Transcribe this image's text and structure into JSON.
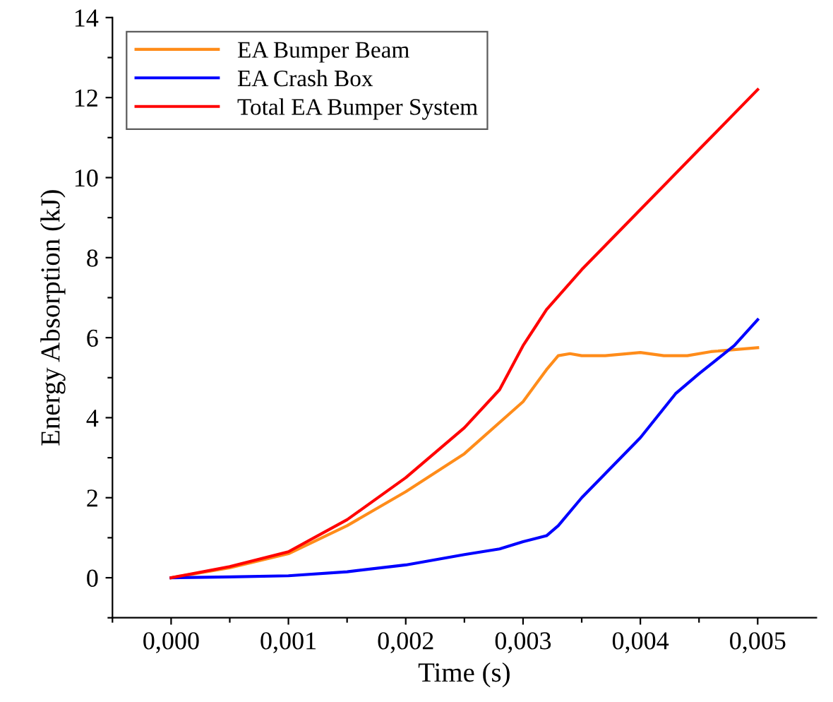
{
  "chart_data": {
    "type": "line",
    "xlabel": "Time (s)",
    "ylabel": "Energy Absorption (kJ)",
    "xlim": [
      -0.0005,
      0.0055
    ],
    "ylim": [
      -1,
      14
    ],
    "xticks": [
      {
        "value": -0.0005,
        "label": null
      },
      {
        "value": 0,
        "label": "0,000"
      },
      {
        "value": 0.0005,
        "label": null
      },
      {
        "value": 0.001,
        "label": "0,001"
      },
      {
        "value": 0.0015,
        "label": null
      },
      {
        "value": 0.002,
        "label": "0,002"
      },
      {
        "value": 0.0025,
        "label": null
      },
      {
        "value": 0.003,
        "label": "0,003"
      },
      {
        "value": 0.0035,
        "label": null
      },
      {
        "value": 0.004,
        "label": "0,004"
      },
      {
        "value": 0.0045,
        "label": null
      },
      {
        "value": 0.005,
        "label": "0,005"
      }
    ],
    "yticks": [
      {
        "value": -1,
        "label": null
      },
      0,
      {
        "value": 1,
        "label": null
      },
      2,
      {
        "value": 3,
        "label": null
      },
      4,
      {
        "value": 5,
        "label": null
      },
      6,
      {
        "value": 7,
        "label": null
      },
      8,
      {
        "value": 9,
        "label": null
      },
      10,
      {
        "value": 11,
        "label": null
      },
      12,
      {
        "value": 13,
        "label": null
      },
      14
    ],
    "grid": false,
    "legend": "top left",
    "marker": "none",
    "line_style": "solid",
    "series": [
      {
        "name": "EA Bumper Beam",
        "color": "#ff8c1a",
        "x": [
          0,
          0.0005,
          0.001,
          0.0015,
          0.002,
          0.0025,
          0.003,
          0.0032,
          0.0033,
          0.0034,
          0.0035,
          0.0037,
          0.004,
          0.0042,
          0.0044,
          0.0046,
          0.005
        ],
        "values": [
          0,
          0.25,
          0.6,
          1.3,
          2.15,
          3.1,
          4.4,
          5.2,
          5.55,
          5.6,
          5.55,
          5.55,
          5.63,
          5.55,
          5.55,
          5.65,
          5.75
        ]
      },
      {
        "name": "EA Crash Box",
        "color": "#0000ff",
        "x": [
          0,
          0.0005,
          0.001,
          0.0015,
          0.002,
          0.0025,
          0.0028,
          0.003,
          0.0032,
          0.0033,
          0.0035,
          0.0037,
          0.004,
          0.0043,
          0.0045,
          0.0048,
          0.005
        ],
        "values": [
          0,
          0.02,
          0.05,
          0.15,
          0.32,
          0.58,
          0.72,
          0.9,
          1.05,
          1.3,
          2.0,
          2.6,
          3.5,
          4.6,
          5.1,
          5.8,
          6.45
        ]
      },
      {
        "name": "Total EA Bumper System",
        "color": "#ff0000",
        "x": [
          0,
          0.0005,
          0.001,
          0.0015,
          0.002,
          0.0025,
          0.0028,
          0.003,
          0.0032,
          0.0035,
          0.004,
          0.0045,
          0.005
        ],
        "values": [
          0,
          0.28,
          0.65,
          1.45,
          2.5,
          3.75,
          4.7,
          5.8,
          6.7,
          7.7,
          9.2,
          10.7,
          12.2
        ]
      }
    ]
  }
}
